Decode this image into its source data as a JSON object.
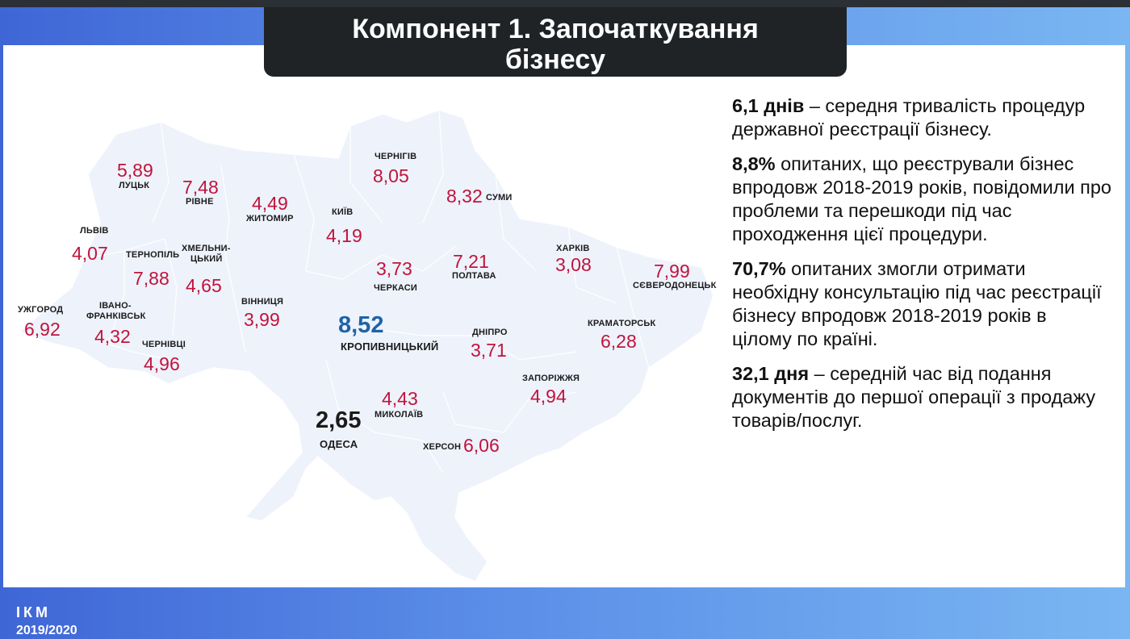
{
  "slide": {
    "title_line1": "Компонент  1. Започаткування",
    "title_line2": "бізнесу"
  },
  "map": {
    "regions": [
      {
        "city": "ЛУЦЬК",
        "value": "5,89"
      },
      {
        "city": "РІВНЕ",
        "value": "7,48"
      },
      {
        "city": "ЖИТОМИР",
        "value": "4,49"
      },
      {
        "city": "КИЇВ",
        "value": "4,19"
      },
      {
        "city": "ЧЕРНІГІВ",
        "value": "8,05"
      },
      {
        "city": "СУМИ",
        "value": "8,32"
      },
      {
        "city": "ЛЬВІВ",
        "value": "4,07"
      },
      {
        "city": "ТЕРНОПІЛЬ",
        "value": "7,88"
      },
      {
        "city": "ХМЕЛЬНИ-ЦЬКИЙ",
        "city_line1": "ХМЕЛЬНИ-",
        "city_line2": "ЦЬКИЙ",
        "value": "4,65"
      },
      {
        "city": "ЧЕРКАСИ",
        "value": "3,73"
      },
      {
        "city": "ПОЛТАВА",
        "value": "7,21"
      },
      {
        "city": "ХАРКІВ",
        "value": "3,08"
      },
      {
        "city": "СЄВЕРОДОНЕЦЬК",
        "value": "7,99"
      },
      {
        "city": "УЖГОРОД",
        "value": "6,92"
      },
      {
        "city": "ІВАНО-ФРАНКІВСЬК",
        "city_line1": "ІВАНО-",
        "city_line2": "ФРАНКІВСЬК",
        "value": "4,32"
      },
      {
        "city": "ЧЕРНІВЦІ",
        "value": "4,96"
      },
      {
        "city": "ВІННИЦЯ",
        "value": "3,99"
      },
      {
        "city": "КРОПИВНИЦЬКИЙ",
        "value": "8,52"
      },
      {
        "city": "ДНІПРО",
        "value": "3,71"
      },
      {
        "city": "КРАМАТОРСЬК",
        "value": "6,28"
      },
      {
        "city": "ЗАПОРІЖЖЯ",
        "value": "4,94"
      },
      {
        "city": "МИКОЛАЇВ",
        "value": "4,43"
      },
      {
        "city": "ОДЕСА",
        "value": "2,65"
      },
      {
        "city": "ХЕРСОН",
        "value": "6,06"
      }
    ],
    "colors": {
      "value": "#c0143c",
      "highlight_max": "#1d63a8",
      "highlight_min": "#1b1b1b",
      "map_fill": "#eef2fb"
    }
  },
  "facts": [
    {
      "bold": "6,1 днів",
      "text": " – середня тривалість процедур державної реєстрації бізнесу."
    },
    {
      "bold": "8,8%",
      "text": " опитаних, що реєстрували бізнес впродовж 2018-2019 років, повідомили про проблеми та перешкоди під час проходження цієї процедури."
    },
    {
      "bold": "70,7%",
      "text": " опитаних змогли отримати необхідну консультацію під час реєстрації бізнесу впродовж 2018-2019 років в цілому по країні."
    },
    {
      "bold": "32,1 дня",
      "text": " – середній час від подання документів до першої операції з продажу товарів/послуг."
    }
  ],
  "footer": {
    "org": "ІКМ",
    "year": "2019/2020"
  }
}
